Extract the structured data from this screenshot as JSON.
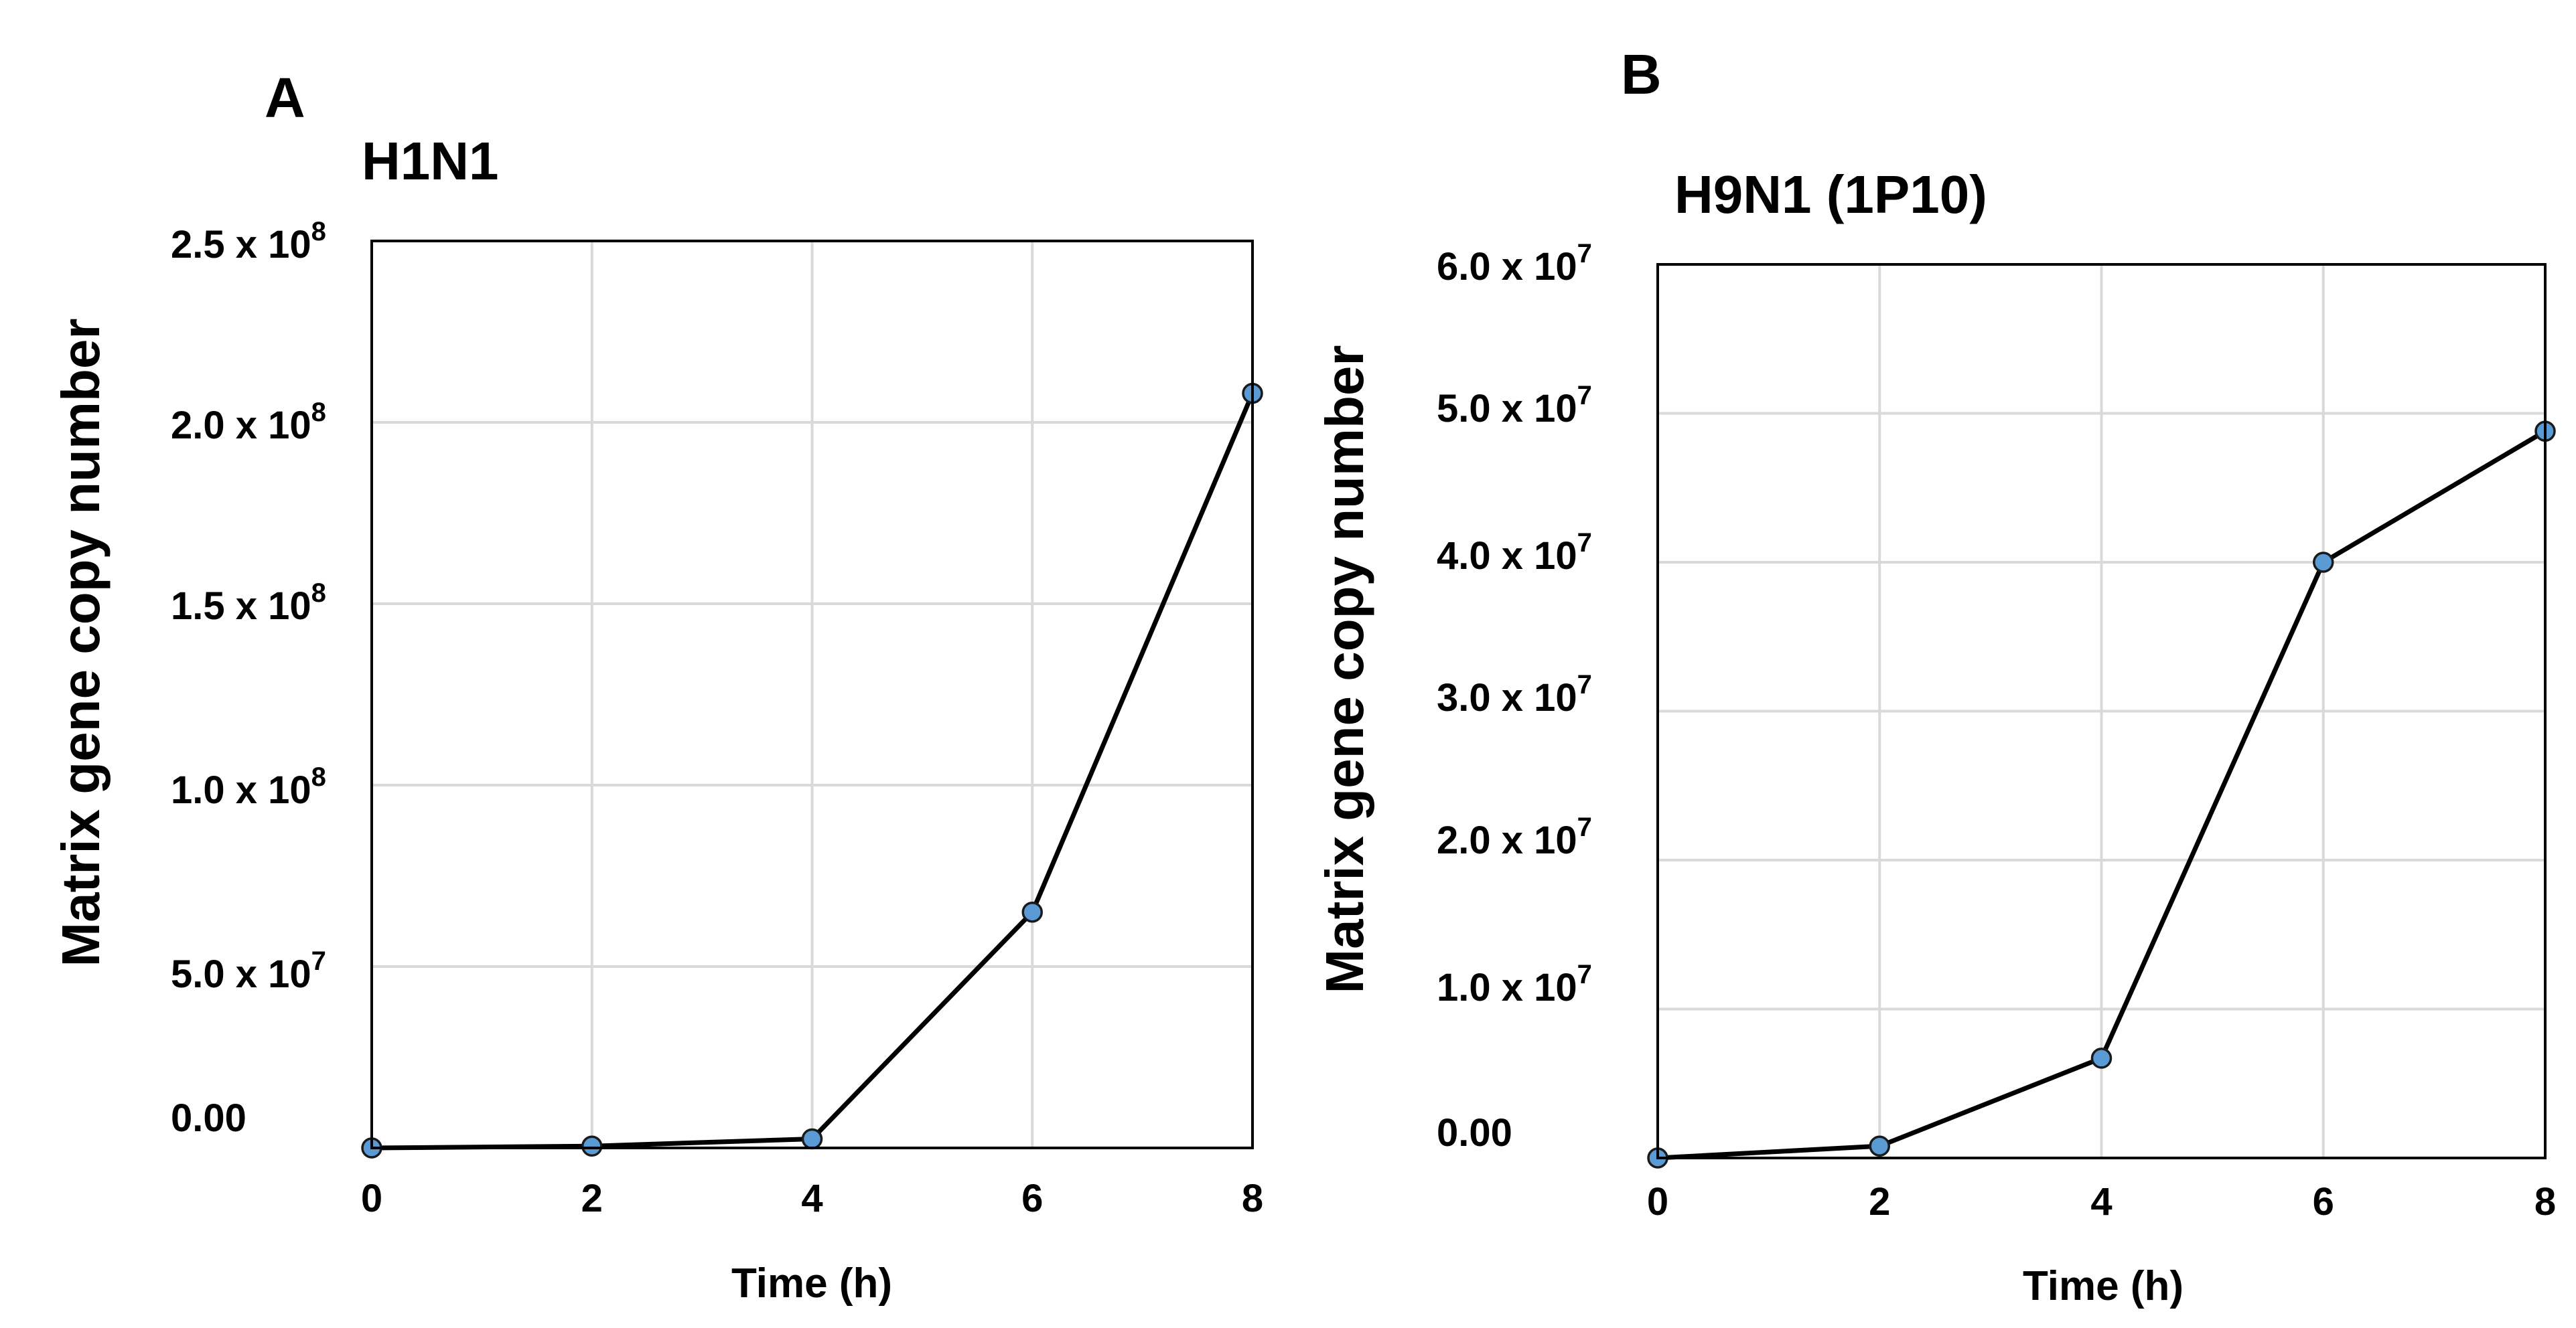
{
  "panels": [
    {
      "letter": "A",
      "title": "H1N1",
      "y_ticks": [
        {
          "base": "2.5 x 10",
          "exp": "8"
        },
        {
          "base": "2.0 x 10",
          "exp": "8"
        },
        {
          "base": "1.5 x 10",
          "exp": "8"
        },
        {
          "base": "1.0 x 10",
          "exp": "8"
        },
        {
          "base": "5.0 x 10",
          "exp": "7"
        },
        {
          "base": "0.00",
          "exp": ""
        }
      ]
    },
    {
      "letter": "B",
      "title": "H9N1 (1P10)",
      "y_ticks": [
        {
          "base": "6.0 x 10",
          "exp": "7"
        },
        {
          "base": "5.0 x 10",
          "exp": "7"
        },
        {
          "base": "4.0 x 10",
          "exp": "7"
        },
        {
          "base": "3.0 x 10",
          "exp": "7"
        },
        {
          "base": "2.0 x 10",
          "exp": "7"
        },
        {
          "base": "1.0 x 10",
          "exp": "7"
        },
        {
          "base": "0.00",
          "exp": ""
        }
      ]
    }
  ],
  "chart_data": [
    {
      "type": "line",
      "title": "H1N1",
      "xlabel": "Time (h)",
      "ylabel": "Matrix gene copy number",
      "x": [
        0,
        2,
        4,
        6,
        8
      ],
      "xticks": [
        0,
        2,
        4,
        6,
        8
      ],
      "xlim": [
        0,
        8
      ],
      "ylim": [
        0,
        250000000
      ],
      "yticks": [
        0,
        50000000,
        100000000,
        150000000,
        200000000,
        250000000
      ],
      "grid": true,
      "series": [
        {
          "name": "H1N1",
          "values": [
            0,
            500000,
            2500000,
            65000000,
            208000000
          ]
        }
      ]
    },
    {
      "type": "line",
      "title": "H9N1 (1P10)",
      "xlabel": "Time (h)",
      "ylabel": "Matrix gene copy number",
      "x": [
        0,
        2,
        4,
        6,
        8
      ],
      "xticks": [
        0,
        2,
        4,
        6,
        8
      ],
      "xlim": [
        0,
        8
      ],
      "ylim": [
        0,
        60000000
      ],
      "yticks": [
        0,
        10000000,
        20000000,
        30000000,
        40000000,
        50000000,
        60000000
      ],
      "grid": true,
      "series": [
        {
          "name": "H9N1 (1P10)",
          "values": [
            0,
            800000,
            6700000,
            40000000,
            48800000
          ]
        }
      ]
    }
  ],
  "colors": {
    "marker_fill": "#5b9bd5",
    "marker_stroke": "#1a1a1a",
    "line": "#000000",
    "grid": "#d9d9d9",
    "frame": "#000000"
  }
}
